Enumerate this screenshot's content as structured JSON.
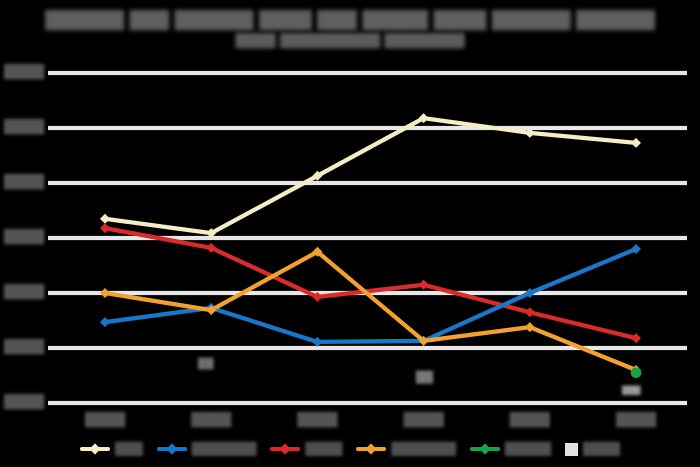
{
  "title": {
    "line1": "██████ ███ ██████ ████ ███ █████ ████ ██████ ██████",
    "line2": "████ ██████████ ████████"
  },
  "y_axis": {
    "ticks": [
      "████",
      "████",
      "████",
      "████",
      "████",
      "████",
      "████"
    ]
  },
  "x_axis": {
    "ticks": [
      "████",
      "████",
      "████",
      "████",
      "████",
      "████"
    ]
  },
  "annotations": [
    {
      "text": "██"
    },
    {
      "text": "██"
    },
    {
      "text": "███"
    }
  ],
  "legend": [
    {
      "label": "███",
      "color": "#f5edc4",
      "marker": "line-diamond"
    },
    {
      "label": "███████",
      "color": "#1778c9",
      "marker": "line-diamond"
    },
    {
      "label": "████",
      "color": "#da2a2b",
      "marker": "line-diamond"
    },
    {
      "label": "███████",
      "color": "#f2a12f",
      "marker": "line-diamond"
    },
    {
      "label": "█████",
      "color": "#18a349",
      "marker": "line-diamond"
    },
    {
      "label": "████",
      "color": "#e2e2e2",
      "marker": "square"
    }
  ],
  "colors": {
    "background": "#000000",
    "gridline": "#e7e7e7",
    "series_cream": "#f5edc4",
    "series_blue": "#1778c9",
    "series_red": "#da2a2b",
    "series_orange": "#f2a12f",
    "series_green": "#18a349",
    "series_gray": "#e2e2e2",
    "text_blur_gray": "#545454"
  },
  "chart_data": {
    "type": "line",
    "title": "██████ ███ ██████ ████ ███ █████ ████ ██████ ██████",
    "subtitle": "████ ██████████ ████████",
    "categories": [
      "████",
      "████",
      "████",
      "████",
      "████",
      "████"
    ],
    "series": [
      {
        "name": "series-1-cream",
        "color": "#f5edc4",
        "marker": "diamond",
        "values": [
          435,
          409,
          513,
          618,
          591,
          573
        ]
      },
      {
        "name": "series-2-blue",
        "color": "#1778c9",
        "marker": "diamond",
        "values": [
          247,
          273,
          211,
          213,
          300,
          380
        ]
      },
      {
        "name": "series-3-red",
        "color": "#da2a2b",
        "marker": "diamond",
        "values": [
          418,
          382,
          293,
          315,
          265,
          218
        ]
      },
      {
        "name": "series-4-orange",
        "color": "#f2a12f",
        "marker": "diamond",
        "values": [
          300,
          269,
          375,
          213,
          238,
          160
        ]
      },
      {
        "name": "series-5-green",
        "color": "#18a349",
        "marker": "circle",
        "values": [
          null,
          null,
          null,
          null,
          null,
          155
        ]
      },
      {
        "name": "series-6-gray",
        "color": "#e2e2e2",
        "marker": "square",
        "values": [
          null,
          null,
          null,
          null,
          null,
          null
        ]
      }
    ],
    "xlabel": "",
    "ylabel": "",
    "ylim": [
      100,
      700
    ],
    "grid": true,
    "gridline_count": 7,
    "legend_position": "bottom",
    "tick_labels_legible": false
  }
}
